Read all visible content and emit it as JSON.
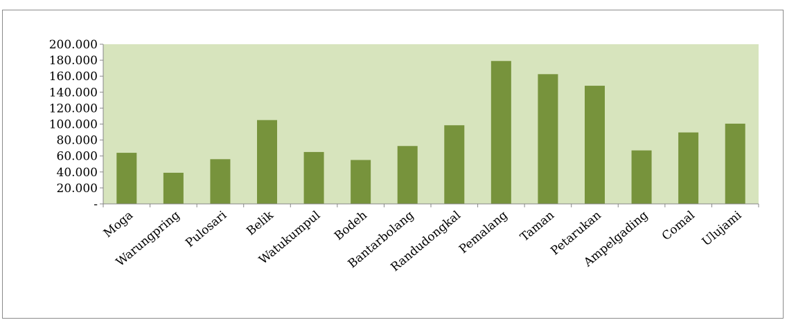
{
  "chart_data": {
    "type": "bar",
    "title": "",
    "xlabel": "",
    "ylabel": "",
    "categories": [
      "Moga",
      "Warungpring",
      "Pulosari",
      "Belik",
      "Watukumpul",
      "Bodeh",
      "Bantarbolang",
      "Randudongkal",
      "Pemalang",
      "Taman",
      "Petarukan",
      "Ampelgading",
      "Comal",
      "Ulujami"
    ],
    "values": [
      64000,
      39000,
      56000,
      105000,
      65000,
      55000,
      72500,
      98500,
      179000,
      162500,
      148000,
      67000,
      89500,
      100500
    ],
    "ylim": [
      0,
      200000
    ],
    "y_ticks": [
      {
        "value": 0,
        "label": "-"
      },
      {
        "value": 20000,
        "label": "20.000"
      },
      {
        "value": 40000,
        "label": "40.000"
      },
      {
        "value": 60000,
        "label": "60.000"
      },
      {
        "value": 80000,
        "label": "80.000"
      },
      {
        "value": 100000,
        "label": "100.000"
      },
      {
        "value": 120000,
        "label": "120.000"
      },
      {
        "value": 140000,
        "label": "140.000"
      },
      {
        "value": 160000,
        "label": "160.000"
      },
      {
        "value": 180000,
        "label": "180.000"
      },
      {
        "value": 200000,
        "label": "200.000"
      }
    ],
    "grid": false,
    "legend": "none",
    "colors": {
      "bar": "#77933c",
      "plot_background": "#d7e4bd",
      "axis": "#868686"
    }
  }
}
